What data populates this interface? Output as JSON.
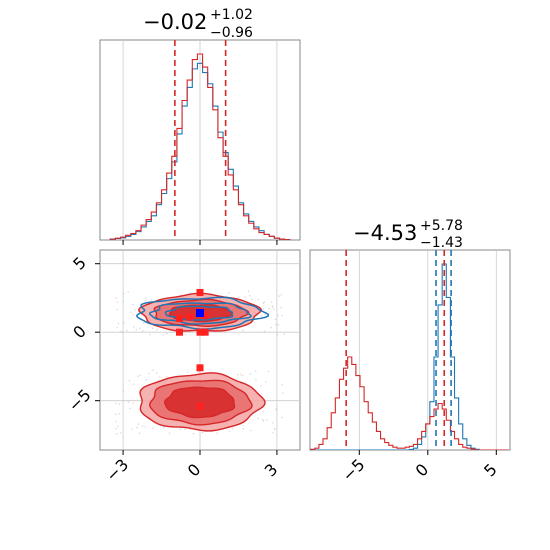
{
  "chart_data": {
    "type": "corner",
    "colors": {
      "series_a": "#1f77b4",
      "series_b": "#d62728",
      "axis": "#000000",
      "grid": "#cccccc",
      "frame": "#888888"
    },
    "panels": [
      {
        "id": "hist-p1",
        "type": "histogram",
        "title": {
          "value": "−0.02",
          "upper": "+1.02",
          "lower": "−0.96"
        },
        "xlim": [
          -3.9,
          3.9
        ],
        "xticks": [
          -3,
          0,
          3
        ],
        "series": [
          {
            "color": "#1f77b4",
            "bin_centers": [
              -3.4,
              -3.2,
              -3.0,
              -2.8,
              -2.6,
              -2.4,
              -2.2,
              -2.0,
              -1.8,
              -1.6,
              -1.4,
              -1.2,
              -1.0,
              -0.8,
              -0.6,
              -0.4,
              -0.2,
              0.0,
              0.2,
              0.4,
              0.6,
              0.8,
              1.0,
              1.2,
              1.4,
              1.6,
              1.8,
              2.0,
              2.2,
              2.4,
              2.6,
              2.8,
              3.0,
              3.2,
              3.4
            ],
            "density": [
              0.005,
              0.008,
              0.012,
              0.02,
              0.03,
              0.045,
              0.07,
              0.1,
              0.13,
              0.19,
              0.25,
              0.33,
              0.42,
              0.57,
              0.72,
              0.82,
              0.92,
              0.95,
              0.9,
              0.84,
              0.72,
              0.58,
              0.47,
              0.38,
              0.29,
              0.2,
              0.14,
              0.1,
              0.07,
              0.05,
              0.03,
              0.02,
              0.01,
              0.005,
              0.002
            ]
          },
          {
            "color": "#d62728",
            "bin_centers": [
              -3.4,
              -3.2,
              -3.0,
              -2.8,
              -2.6,
              -2.4,
              -2.2,
              -2.0,
              -1.8,
              -1.6,
              -1.4,
              -1.2,
              -1.0,
              -0.8,
              -0.6,
              -0.4,
              -0.2,
              0.0,
              0.2,
              0.4,
              0.6,
              0.8,
              1.0,
              1.2,
              1.4,
              1.6,
              1.8,
              2.0,
              2.2,
              2.4,
              2.6,
              2.8,
              3.0,
              3.2,
              3.4
            ],
            "density": [
              0.004,
              0.01,
              0.015,
              0.025,
              0.035,
              0.05,
              0.08,
              0.11,
              0.15,
              0.2,
              0.27,
              0.36,
              0.45,
              0.6,
              0.75,
              0.86,
              0.97,
              1.0,
              0.93,
              0.82,
              0.7,
              0.55,
              0.45,
              0.35,
              0.27,
              0.19,
              0.13,
              0.09,
              0.06,
              0.04,
              0.03,
              0.02,
              0.01,
              0.005,
              0.002
            ]
          }
        ],
        "quantiles": [
          {
            "x": -0.98,
            "color": "#d62728"
          },
          {
            "x": 1.0,
            "color": "#d62728"
          }
        ]
      },
      {
        "id": "hist-p2",
        "type": "histogram",
        "title": {
          "value": "−4.53",
          "upper": "+5.78",
          "lower": "−1.43"
        },
        "xlim": [
          -8.6,
          6.0
        ],
        "xticks": [
          -5,
          0,
          5
        ],
        "series": [
          {
            "color": "#1f77b4",
            "bin_centers": [
              -8.4,
              -8.1,
              -7.8,
              -7.5,
              -7.2,
              -6.9,
              -6.6,
              -6.3,
              -6.0,
              -5.7,
              -5.4,
              -5.1,
              -4.8,
              -4.5,
              -4.2,
              -3.9,
              -3.6,
              -3.3,
              -3.0,
              -2.7,
              -2.4,
              -2.1,
              -1.8,
              -1.5,
              -1.2,
              -0.9,
              -0.6,
              -0.3,
              0.0,
              0.3,
              0.6,
              0.9,
              1.2,
              1.5,
              1.8,
              2.1,
              2.4,
              2.7,
              3.0,
              3.3,
              3.6,
              3.9,
              4.2,
              4.5,
              4.8,
              5.1,
              5.4,
              5.7
            ],
            "density": [
              0,
              0,
              0,
              0,
              0,
              0,
              0,
              0,
              0,
              0,
              0,
              0,
              0,
              0,
              0,
              0,
              0,
              0,
              0,
              0,
              0,
              0,
              0,
              0,
              0.003,
              0.01,
              0.03,
              0.07,
              0.14,
              0.26,
              0.5,
              0.78,
              1.0,
              0.82,
              0.5,
              0.28,
              0.14,
              0.06,
              0.025,
              0.01,
              0.004,
              0,
              0,
              0,
              0,
              0,
              0,
              0
            ]
          },
          {
            "color": "#d62728",
            "bin_centers": [
              -8.4,
              -8.1,
              -7.8,
              -7.5,
              -7.2,
              -6.9,
              -6.6,
              -6.3,
              -6.0,
              -5.7,
              -5.4,
              -5.1,
              -4.8,
              -4.5,
              -4.2,
              -3.9,
              -3.6,
              -3.3,
              -3.0,
              -2.7,
              -2.4,
              -2.1,
              -1.8,
              -1.5,
              -1.2,
              -0.9,
              -0.6,
              -0.3,
              0.0,
              0.3,
              0.6,
              0.9,
              1.2,
              1.5,
              1.8,
              2.1,
              2.4,
              2.7,
              3.0,
              3.3,
              3.6,
              3.9,
              4.2,
              4.5,
              4.8,
              5.1,
              5.4,
              5.7
            ],
            "density": [
              0.004,
              0.01,
              0.03,
              0.06,
              0.12,
              0.2,
              0.28,
              0.38,
              0.44,
              0.5,
              0.46,
              0.4,
              0.34,
              0.26,
              0.2,
              0.15,
              0.1,
              0.06,
              0.04,
              0.025,
              0.015,
              0.01,
              0.01,
              0.015,
              0.02,
              0.03,
              0.06,
              0.1,
              0.14,
              0.18,
              0.22,
              0.25,
              0.22,
              0.16,
              0.1,
              0.06,
              0.03,
              0.015,
              0.01,
              0.005,
              0,
              0,
              0,
              0,
              0,
              0,
              0,
              0
            ]
          }
        ],
        "quantiles": [
          {
            "x": -5.96,
            "color": "#d62728"
          },
          {
            "x": 0.6,
            "color": "#1f77b4"
          },
          {
            "x": 1.2,
            "color": "#d62728"
          },
          {
            "x": 1.7,
            "color": "#1f77b4"
          }
        ]
      },
      {
        "id": "joint-p1-p2",
        "type": "contour",
        "xlim": [
          -3.9,
          3.9
        ],
        "ylim": [
          -8.6,
          6.0
        ],
        "xticks": [
          -3,
          0,
          3
        ],
        "yticks": [
          5,
          0,
          -5
        ],
        "red_modes": [
          {
            "cx": 0.0,
            "cy": 1.4,
            "levels": [
              [
                2.3,
                1.35
              ],
              [
                1.8,
                0.95
              ],
              [
                1.2,
                0.6
              ]
            ]
          },
          {
            "cx": 0.0,
            "cy": -5.1,
            "levels": [
              [
                2.4,
                2.05
              ],
              [
                1.95,
                1.6
              ],
              [
                1.35,
                1.1
              ]
            ]
          }
        ],
        "blue_mode": {
          "cx": 0.0,
          "cy": 1.4,
          "levels": [
            [
              2.45,
              1.1
            ],
            [
              1.9,
              0.75
            ],
            [
              1.3,
              0.5
            ]
          ]
        },
        "red_markers": [
          {
            "x": -0.8,
            "y": 1.0
          },
          {
            "x": -0.4,
            "y": 1.1
          },
          {
            "x": 0.0,
            "y": 2.9
          },
          {
            "x": 0.0,
            "y": 0.0
          },
          {
            "x": 0.2,
            "y": 0.0
          },
          {
            "x": -0.8,
            "y": 0.0
          },
          {
            "x": 0.0,
            "y": -2.6
          },
          {
            "x": 0.0,
            "y": -5.4
          },
          {
            "x": 0.2,
            "y": 1.2
          }
        ],
        "blue_markers": [
          {
            "x": 0.0,
            "y": 1.4
          }
        ]
      }
    ]
  }
}
